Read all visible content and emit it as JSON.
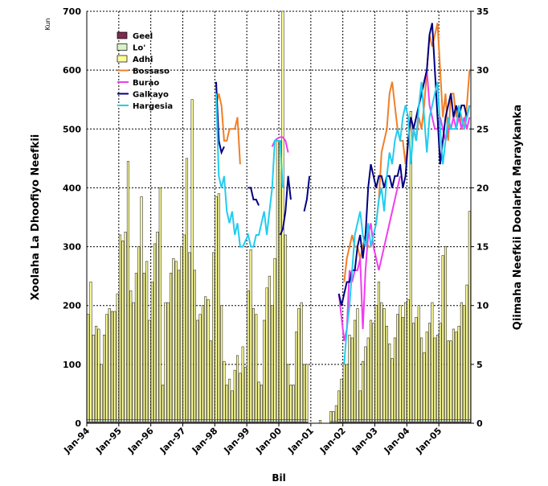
{
  "chart_data": {
    "type": "bar_line",
    "y_unit": "Kun",
    "y_label": "Xoolaha La Dhoofiyo Neefkii",
    "y2_label": "Qiimaha Neefkii Doolarka Maraykanka",
    "x_label": "Bil",
    "categories": [
      "Jan-94",
      null,
      null,
      null,
      null,
      null,
      null,
      null,
      null,
      null,
      null,
      null,
      "Jan-95",
      null,
      null,
      null,
      null,
      null,
      null,
      null,
      null,
      null,
      null,
      null,
      "Jan-96",
      null,
      null,
      null,
      null,
      null,
      null,
      null,
      null,
      null,
      null,
      null,
      "Jan-97",
      null,
      null,
      null,
      null,
      null,
      null,
      null,
      null,
      null,
      null,
      null,
      "Jan-98",
      null,
      null,
      null,
      null,
      null,
      null,
      null,
      null,
      null,
      null,
      null,
      "Jan-99",
      null,
      null,
      null,
      null,
      null,
      null,
      null,
      null,
      null,
      null,
      null,
      "Jan-00",
      null,
      null,
      null,
      null,
      null,
      null,
      null,
      null,
      null,
      null,
      null,
      "Jan-01",
      null,
      null,
      null,
      null,
      null,
      null,
      null,
      null,
      null,
      null,
      null,
      "Jan-02",
      null,
      null,
      null,
      null,
      null,
      null,
      null,
      null,
      null,
      null,
      null,
      "Jan-03",
      null,
      null,
      null,
      null,
      null,
      null,
      null,
      null,
      null,
      null,
      null,
      "Jan-04",
      null,
      null,
      null,
      null,
      null,
      null,
      null,
      null,
      null,
      null,
      null,
      "Jan-05",
      null,
      null,
      null,
      null,
      null,
      null,
      null,
      null,
      null,
      null,
      null
    ],
    "ylim": [
      0,
      700
    ],
    "yticks": [
      0,
      100,
      200,
      300,
      400,
      500,
      600,
      700
    ],
    "y2lim": [
      0,
      35
    ],
    "y2ticks": [
      0,
      5,
      10,
      15,
      20,
      25,
      30,
      35
    ],
    "grid": true,
    "legend": "upper left",
    "series": [
      {
        "name": "Geel",
        "type": "bar",
        "color": "#7b2c4f",
        "values": [
          2,
          2,
          2,
          2,
          2,
          2,
          2,
          2,
          2,
          2,
          2,
          2,
          2,
          2,
          2,
          2,
          2,
          2,
          2,
          2,
          2,
          2,
          2,
          2,
          2,
          2,
          2,
          2,
          2,
          2,
          2,
          2,
          2,
          2,
          2,
          2,
          2,
          2,
          2,
          2,
          2,
          2,
          2,
          2,
          2,
          2,
          2,
          2,
          2,
          2,
          2,
          2,
          2,
          2,
          2,
          2,
          2,
          2,
          2,
          2,
          2,
          2,
          2,
          2,
          2,
          2,
          2,
          2,
          2,
          2,
          2,
          2,
          2,
          2,
          2,
          2,
          2,
          2,
          2,
          2,
          2,
          2,
          2,
          0,
          0,
          0,
          0,
          0,
          0,
          0,
          0,
          1,
          1,
          1,
          2,
          2,
          2,
          2,
          2,
          2,
          2,
          2,
          2,
          2,
          2,
          2,
          2,
          2,
          2,
          2,
          2,
          2,
          2,
          2,
          2,
          2,
          2,
          2,
          2,
          2,
          2,
          2,
          2,
          2,
          2,
          2,
          2,
          2,
          2,
          2,
          2,
          2,
          2,
          2,
          2,
          2,
          2,
          2,
          2,
          2,
          2,
          2,
          2,
          2
        ]
      },
      {
        "name": "Lo'",
        "type": "bar",
        "color": "#d8f3c8",
        "values": [
          4,
          4,
          4,
          4,
          4,
          4,
          4,
          4,
          4,
          4,
          4,
          4,
          4,
          4,
          4,
          4,
          4,
          4,
          4,
          4,
          4,
          4,
          4,
          4,
          4,
          4,
          4,
          4,
          4,
          4,
          4,
          4,
          4,
          4,
          4,
          4,
          4,
          4,
          4,
          4,
          4,
          4,
          4,
          4,
          4,
          4,
          4,
          4,
          4,
          4,
          4,
          4,
          4,
          4,
          4,
          4,
          4,
          4,
          4,
          4,
          4,
          4,
          4,
          4,
          4,
          4,
          4,
          4,
          4,
          4,
          4,
          4,
          4,
          4,
          4,
          4,
          4,
          4,
          4,
          4,
          4,
          4,
          4,
          0,
          0,
          0,
          0,
          0,
          0,
          0,
          0,
          2,
          2,
          2,
          4,
          4,
          4,
          4,
          4,
          4,
          4,
          4,
          4,
          4,
          4,
          4,
          4,
          4,
          4,
          4,
          4,
          4,
          4,
          4,
          4,
          4,
          4,
          4,
          4,
          4,
          4,
          4,
          4,
          4,
          4,
          4,
          4,
          4,
          4,
          4,
          4,
          4,
          4,
          4,
          4,
          4,
          4,
          4,
          4,
          4,
          4,
          4,
          4,
          4
        ]
      },
      {
        "name": "Adhi",
        "type": "bar",
        "color": "#ffff99",
        "values": [
          179,
          234,
          144,
          159,
          154,
          94,
          144,
          179,
          189,
          184,
          184,
          214,
          314,
          304,
          319,
          439,
          219,
          199,
          249,
          294,
          379,
          249,
          269,
          169,
          234,
          299,
          319,
          394,
          59,
          199,
          199,
          249,
          274,
          269,
          254,
          294,
          314,
          444,
          284,
          544,
          254,
          169,
          179,
          194,
          209,
          204,
          134,
          284,
          379,
          384,
          194,
          99,
          59,
          69,
          49,
          84,
          109,
          79,
          124,
          89,
          219,
          289,
          189,
          179,
          64,
          59,
          169,
          224,
          244,
          194,
          274,
          474,
          474,
          694,
          314,
          94,
          59,
          59,
          149,
          189,
          199,
          94,
          94,
          0,
          0,
          0,
          0,
          5,
          0,
          0,
          0,
          17,
          17,
          27,
          49,
          69,
          94,
          94,
          144,
          139,
          169,
          189,
          49,
          99,
          124,
          139,
          169,
          164,
          194,
          234,
          199,
          189,
          159,
          129,
          104,
          139,
          179,
          194,
          174,
          199,
          204,
          524,
          164,
          174,
          194,
          139,
          114,
          149,
          164,
          199,
          139,
          144,
          164,
          279,
          294,
          134,
          134,
          154,
          149,
          159,
          199,
          194,
          229,
          354
        ]
      },
      {
        "name": "Bossaso",
        "type": "line",
        "axis": "y2",
        "color": "#f07f28",
        "values": [
          null,
          null,
          null,
          null,
          null,
          null,
          null,
          null,
          null,
          null,
          null,
          null,
          null,
          null,
          null,
          null,
          null,
          null,
          null,
          null,
          null,
          null,
          null,
          null,
          null,
          null,
          null,
          null,
          null,
          null,
          null,
          null,
          null,
          null,
          null,
          null,
          null,
          null,
          null,
          null,
          null,
          null,
          null,
          null,
          null,
          null,
          null,
          null,
          27,
          28,
          27,
          24,
          24,
          25,
          25,
          25,
          26,
          22,
          null,
          null,
          null,
          null,
          null,
          null,
          null,
          null,
          null,
          null,
          null,
          null,
          null,
          null,
          null,
          null,
          null,
          null,
          null,
          null,
          null,
          null,
          null,
          null,
          null,
          null,
          null,
          null,
          null,
          null,
          null,
          null,
          null,
          null,
          null,
          null,
          null,
          null,
          12,
          14,
          15,
          16,
          15,
          15,
          14,
          15,
          16,
          15,
          15,
          16,
          17,
          19,
          23,
          24,
          25,
          28,
          29,
          27,
          25,
          24,
          24,
          22,
          24,
          26,
          25,
          24,
          26,
          25,
          27,
          30,
          33,
          32,
          33,
          34,
          30,
          26,
          28,
          24,
          28,
          28,
          26,
          27,
          25,
          25,
          27,
          30
        ]
      },
      {
        "name": "Burao",
        "type": "line",
        "axis": "y2",
        "color": "#f03cf0",
        "values": [
          null,
          null,
          null,
          null,
          null,
          null,
          null,
          null,
          null,
          null,
          null,
          null,
          null,
          null,
          null,
          null,
          null,
          null,
          null,
          null,
          null,
          null,
          null,
          null,
          null,
          null,
          null,
          null,
          null,
          null,
          null,
          null,
          null,
          null,
          null,
          null,
          null,
          null,
          null,
          null,
          null,
          null,
          null,
          null,
          null,
          null,
          null,
          null,
          null,
          null,
          null,
          null,
          null,
          null,
          null,
          null,
          null,
          null,
          null,
          null,
          null,
          null,
          null,
          null,
          null,
          null,
          null,
          null,
          null,
          23.5,
          24,
          24.2,
          24.3,
          24.3,
          24,
          23,
          null,
          null,
          null,
          null,
          null,
          null,
          null,
          null,
          null,
          null,
          null,
          null,
          null,
          null,
          null,
          null,
          null,
          null,
          11,
          9,
          7,
          8,
          13,
          12,
          13,
          13,
          14,
          8,
          13,
          16,
          17,
          15,
          14,
          13,
          14,
          15,
          16,
          17,
          18,
          19,
          20,
          21,
          null,
          null,
          24,
          26,
          25,
          24,
          27,
          28,
          29,
          30,
          27,
          26,
          25,
          25,
          26,
          25,
          24,
          25,
          25,
          26,
          25,
          26,
          25,
          26,
          25,
          26
        ]
      },
      {
        "name": "Galkayo",
        "type": "line",
        "axis": "y2",
        "color": "#000080",
        "values": [
          null,
          null,
          null,
          null,
          null,
          null,
          null,
          null,
          null,
          null,
          null,
          null,
          null,
          null,
          null,
          null,
          null,
          null,
          null,
          null,
          null,
          null,
          null,
          null,
          null,
          null,
          null,
          null,
          null,
          null,
          null,
          null,
          null,
          null,
          null,
          null,
          null,
          null,
          null,
          null,
          null,
          null,
          null,
          null,
          null,
          null,
          null,
          null,
          29,
          24,
          23,
          23.5,
          null,
          null,
          null,
          null,
          null,
          null,
          null,
          null,
          20,
          20,
          19,
          19,
          18.5,
          null,
          null,
          null,
          null,
          null,
          null,
          null,
          16,
          16.5,
          18,
          21,
          19,
          null,
          null,
          null,
          null,
          18,
          19,
          21,
          null,
          null,
          null,
          null,
          null,
          null,
          null,
          null,
          null,
          null,
          11,
          10,
          11,
          12,
          12,
          13,
          13,
          15,
          16,
          14,
          16,
          20,
          22,
          21,
          20,
          21,
          21,
          20,
          21,
          21,
          20,
          21,
          21,
          22,
          20,
          21,
          24,
          26,
          25,
          26,
          27,
          28,
          29,
          30,
          33,
          34,
          30,
          26,
          22,
          24,
          26,
          27,
          28,
          26,
          27,
          26,
          27,
          27,
          26,
          27
        ]
      },
      {
        "name": "Hargesia",
        "type": "line",
        "axis": "y2",
        "color": "#22ccee",
        "values": [
          null,
          null,
          null,
          null,
          null,
          null,
          null,
          null,
          null,
          null,
          null,
          null,
          null,
          null,
          null,
          null,
          null,
          null,
          null,
          null,
          null,
          null,
          null,
          null,
          null,
          null,
          null,
          null,
          null,
          null,
          null,
          null,
          null,
          null,
          null,
          null,
          null,
          null,
          null,
          null,
          null,
          null,
          null,
          null,
          null,
          null,
          null,
          null,
          28,
          21,
          20,
          21,
          18,
          17,
          18,
          16,
          17,
          15,
          15,
          15.5,
          16,
          15,
          15,
          16,
          16,
          17,
          18,
          16,
          18,
          20,
          24,
          24,
          24,
          20,
          null,
          null,
          null,
          null,
          null,
          null,
          null,
          null,
          null,
          null,
          null,
          null,
          null,
          null,
          null,
          null,
          null,
          null,
          null,
          null,
          null,
          null,
          5,
          8,
          10,
          13,
          16,
          17,
          18,
          16,
          15,
          17,
          15,
          16,
          17,
          19,
          20,
          18,
          21,
          23,
          22,
          24,
          25,
          24,
          26,
          27,
          26,
          22,
          25,
          24,
          27,
          29,
          26,
          23,
          26,
          27,
          28,
          29,
          25,
          22,
          24,
          26,
          25,
          25,
          25,
          27,
          26,
          25,
          26,
          27
        ]
      }
    ]
  }
}
